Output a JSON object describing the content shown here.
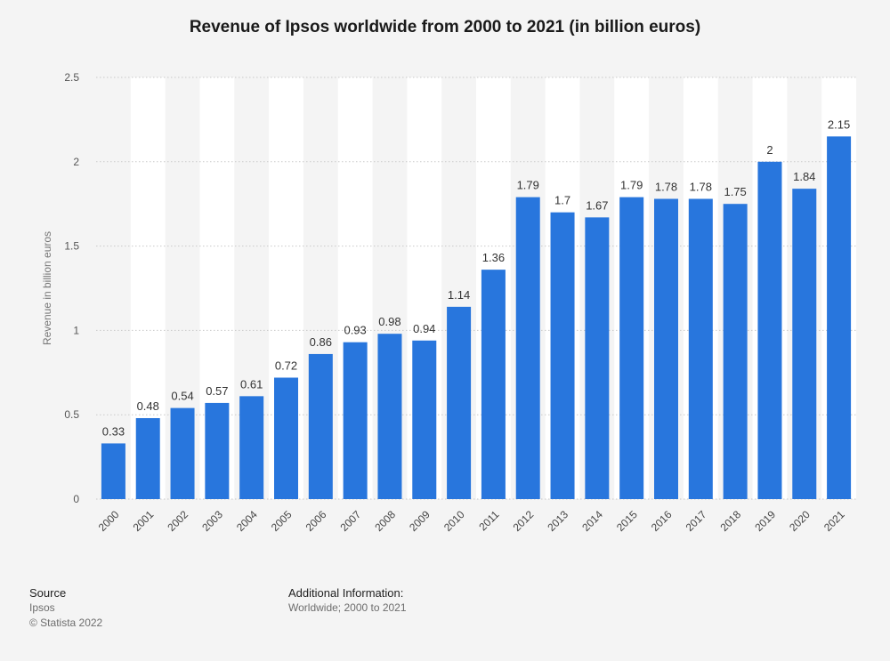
{
  "chart_data": {
    "type": "bar",
    "title": "Revenue of Ipsos worldwide from 2000 to 2021 (in billion euros)",
    "xlabel": "",
    "ylabel": "Revenue in billion euros",
    "categories": [
      "2000",
      "2001",
      "2002",
      "2003",
      "2004",
      "2005",
      "2006",
      "2007",
      "2008",
      "2009",
      "2010",
      "2011",
      "2012",
      "2013",
      "2014",
      "2015",
      "2016",
      "2017",
      "2018",
      "2019",
      "2020",
      "2021"
    ],
    "values": [
      0.33,
      0.48,
      0.54,
      0.57,
      0.61,
      0.72,
      0.86,
      0.93,
      0.98,
      0.94,
      1.14,
      1.36,
      1.79,
      1.7,
      1.67,
      1.79,
      1.78,
      1.78,
      1.75,
      2,
      1.84,
      2.15
    ],
    "value_labels": [
      "0.33",
      "0.48",
      "0.54",
      "0.57",
      "0.61",
      "0.72",
      "0.86",
      "0.93",
      "0.98",
      "0.94",
      "1.14",
      "1.36",
      "1.79",
      "1.7",
      "1.67",
      "1.79",
      "1.78",
      "1.78",
      "1.75",
      "2",
      "1.84",
      "2.15"
    ],
    "ylim": [
      0,
      2.5
    ],
    "yticks": [
      "0",
      "0.5",
      "1",
      "1.5",
      "2",
      "2.5"
    ],
    "grid": true,
    "legend": "none",
    "colors": {
      "bar": "#2876dd",
      "background": "#f4f4f4",
      "band": "#ffffff",
      "grid": "#c9c9c9"
    }
  },
  "footer": {
    "source_heading": "Source",
    "source_name": "Ipsos",
    "copyright": "© Statista 2022",
    "additional_heading": "Additional Information:",
    "additional_text": "Worldwide; 2000 to 2021"
  }
}
